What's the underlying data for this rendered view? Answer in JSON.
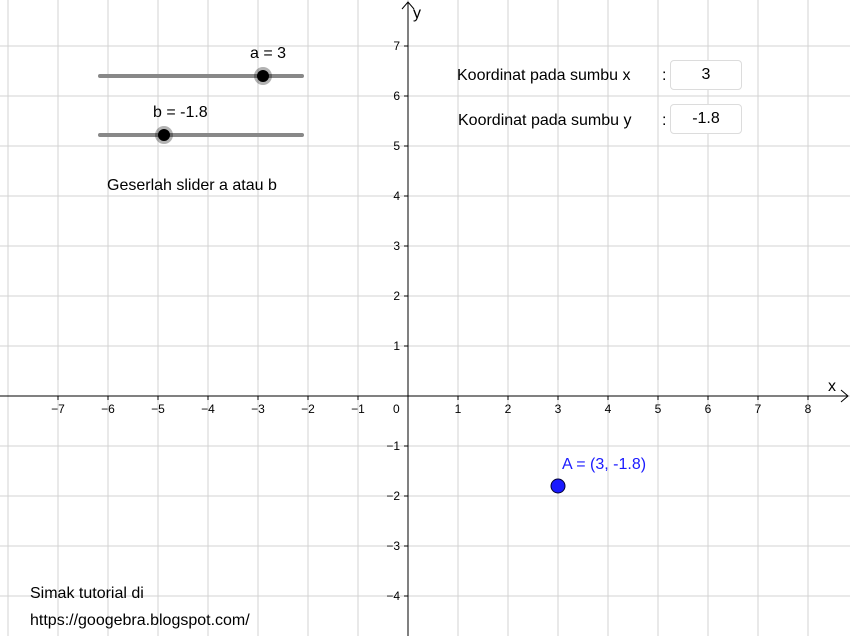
{
  "graph": {
    "x_axis_label": "x",
    "y_axis_label": "y",
    "origin_label": "0",
    "x_ticks": [
      "−7",
      "−6",
      "−5",
      "−4",
      "−3",
      "−2",
      "−1",
      "1",
      "2",
      "3",
      "4",
      "5",
      "6",
      "7",
      "8"
    ],
    "y_ticks": [
      "7",
      "6",
      "5",
      "4",
      "3",
      "2",
      "1",
      "−1",
      "−2",
      "−3",
      "−4"
    ],
    "x_range": [
      -8,
      8.7
    ],
    "y_range": [
      -4.7,
      7.9
    ],
    "grid": true,
    "colors": {
      "grid": "#d3d3d3",
      "axis": "#000000",
      "point": "#1a1aff"
    }
  },
  "sliders": [
    {
      "name": "a",
      "label": "a = 3",
      "value": 3,
      "min": -5,
      "max": 5
    },
    {
      "name": "b",
      "label": "b = -1.8",
      "value": -1.8,
      "min": -5,
      "max": 5
    }
  ],
  "instruction": "Geserlah slider a atau b",
  "inputs": {
    "x": {
      "label": "Koordinat pada sumbu x",
      "separator": ":",
      "value": "3"
    },
    "y": {
      "label": "Koordinat pada sumbu y",
      "separator": ":",
      "value": "-1.8"
    }
  },
  "point": {
    "label": "A = (3, -1.8)",
    "x": 3,
    "y": -1.8
  },
  "footer": {
    "line1": "Simak tutorial di",
    "line2": "https://googebra.blogspot.com/"
  }
}
